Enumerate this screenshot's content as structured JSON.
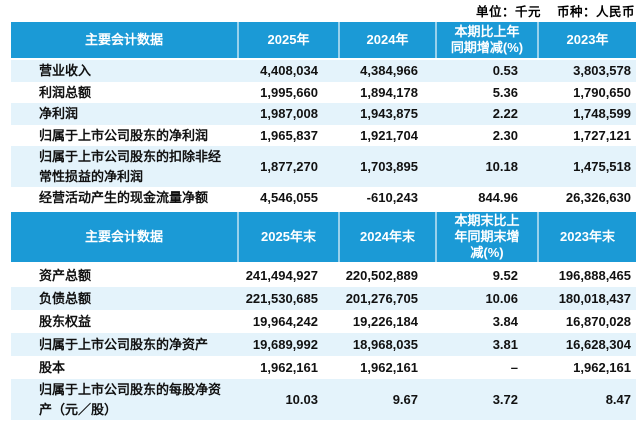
{
  "page": {
    "unit_label": "单位：千元",
    "currency_label": "币种：人民币"
  },
  "colors": {
    "header_bg": "#1b9ad6",
    "header_text": "#ffffff",
    "shaded_row_bg": "#e4f3fb",
    "body_text": "#111111"
  },
  "table1": {
    "headers": [
      "主要会计数据",
      "2025年",
      "2024年",
      "本期比上年\n同期增减(%)",
      "2023年"
    ],
    "shaded_rows": [
      0,
      2,
      4
    ],
    "rows": [
      [
        "营业收入",
        "4,408,034",
        "4,384,966",
        "0.53",
        "3,803,578"
      ],
      [
        "利润总额",
        "1,995,660",
        "1,894,178",
        "5.36",
        "1,790,650"
      ],
      [
        "净利润",
        "1,987,008",
        "1,943,875",
        "2.22",
        "1,748,599"
      ],
      [
        "归属于上市公司股东的净利润",
        "1,965,837",
        "1,921,704",
        "2.30",
        "1,727,121"
      ],
      [
        "归属于上市公司股东的扣除非经常性损益的净利润",
        "1,877,270",
        "1,703,895",
        "10.18",
        "1,475,518"
      ],
      [
        "经营活动产生的现金流量净额",
        "4,546,055",
        "-610,243",
        "844.96",
        "26,326,630"
      ]
    ]
  },
  "table2": {
    "headers": [
      "主要会计数据",
      "2025年末",
      "2024年末",
      "本期末比上\n年同期末增\n减(%)",
      "2023年末"
    ],
    "shaded_rows": [
      1,
      3,
      5
    ],
    "rows": [
      [
        "资产总额",
        "241,494,927",
        "220,502,889",
        "9.52",
        "196,888,465"
      ],
      [
        "负债总额",
        "221,530,685",
        "201,276,705",
        "10.06",
        "180,018,437"
      ],
      [
        "股东权益",
        "19,964,242",
        "19,226,184",
        "3.84",
        "16,870,028"
      ],
      [
        "归属于上市公司股东的净资产",
        "19,689,992",
        "18,968,035",
        "3.81",
        "16,628,304"
      ],
      [
        "股本",
        "1,962,161",
        "1,962,161",
        "–",
        "1,962,161"
      ],
      [
        "归属于上市公司股东的每股净资产（元／股）",
        "10.03",
        "9.67",
        "3.72",
        "8.47"
      ]
    ]
  }
}
